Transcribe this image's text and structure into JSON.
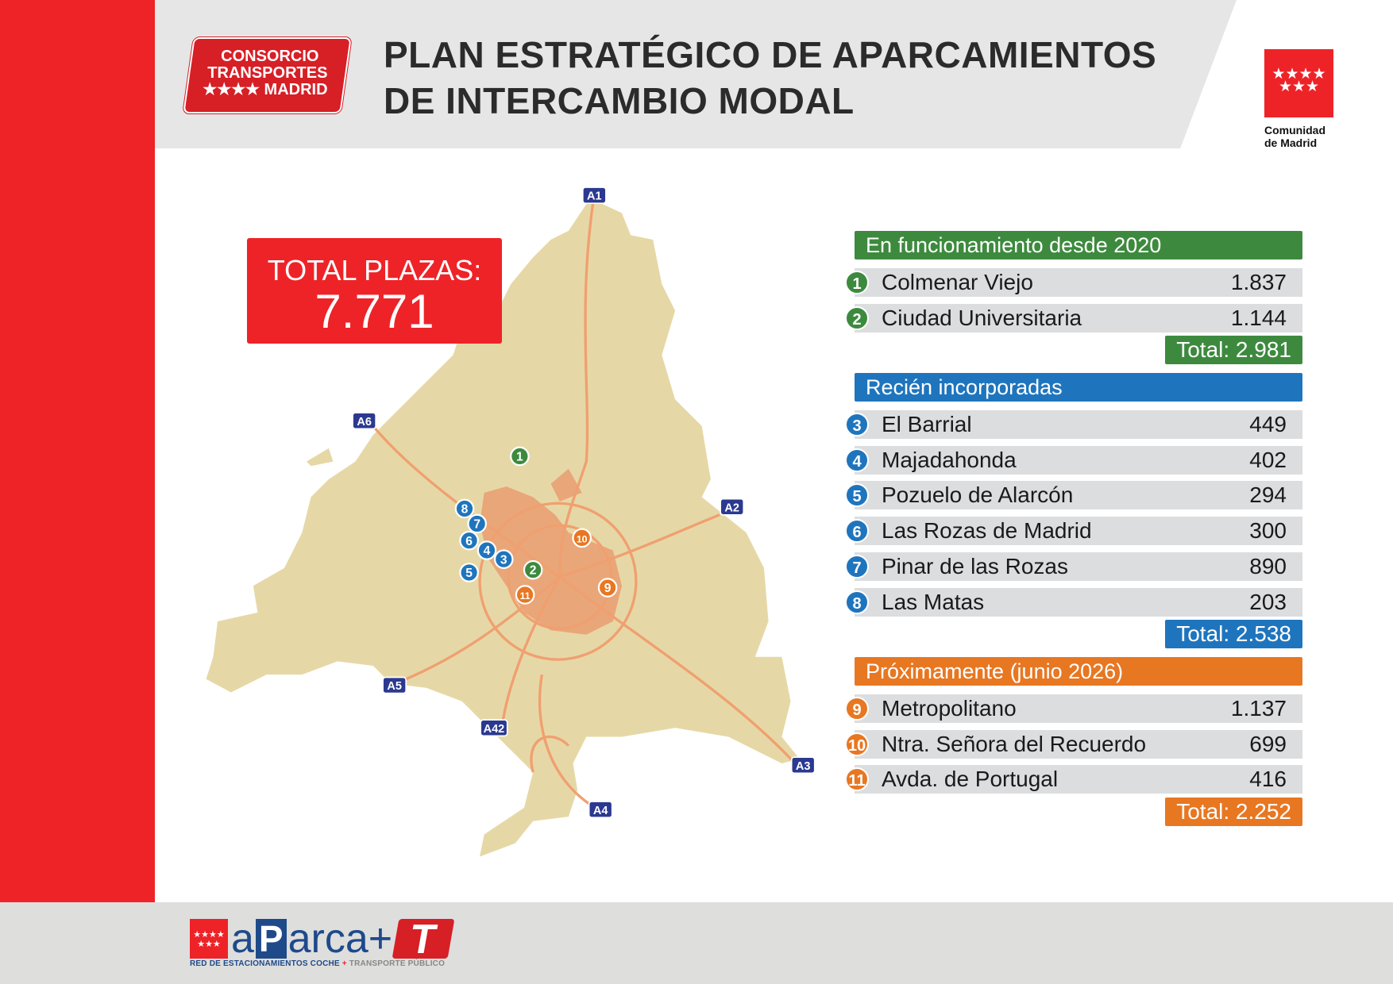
{
  "header": {
    "title_line1": "PLAN ESTRATÉGICO DE APARCAMIENTOS",
    "title_line2": "DE INTERCAMBIO MODAL",
    "consorcio_logo": [
      "CONSORCIO",
      "TRANSPORTES",
      "★★★★ MADRID"
    ],
    "comunidad_logo": {
      "stars": "★★★★ ★★★",
      "text_line1": "Comunidad",
      "text_line2": "de Madrid"
    }
  },
  "total": {
    "label": "TOTAL PLAZAS:",
    "value": "7.771"
  },
  "colors": {
    "red": "#ee2328",
    "green": "#3d8a3e",
    "blue": "#1f75bd",
    "orange": "#e87722",
    "map": "#e6d8a6",
    "city": "#e9a679"
  },
  "map": {
    "roads": [
      "A1",
      "A2",
      "A3",
      "A4",
      "A42",
      "A5",
      "A6"
    ],
    "markers": [
      {
        "n": "1",
        "group": "green"
      },
      {
        "n": "2",
        "group": "green"
      },
      {
        "n": "3",
        "group": "blue"
      },
      {
        "n": "4",
        "group": "blue"
      },
      {
        "n": "5",
        "group": "blue"
      },
      {
        "n": "6",
        "group": "blue"
      },
      {
        "n": "7",
        "group": "blue"
      },
      {
        "n": "8",
        "group": "blue"
      },
      {
        "n": "9",
        "group": "orange"
      },
      {
        "n": "10",
        "group": "orange"
      },
      {
        "n": "11",
        "group": "orange"
      }
    ]
  },
  "sections": [
    {
      "title": "En funcionamiento desde 2020",
      "color": "green",
      "items": [
        {
          "n": "1",
          "name": "Colmenar Viejo",
          "value": "1.837"
        },
        {
          "n": "2",
          "name": "Ciudad Universitaria",
          "value": "1.144"
        }
      ],
      "total": "Total: 2.981"
    },
    {
      "title": "Recién incorporadas",
      "color": "blue",
      "items": [
        {
          "n": "3",
          "name": "El Barrial",
          "value": "449"
        },
        {
          "n": "4",
          "name": "Majadahonda",
          "value": "402"
        },
        {
          "n": "5",
          "name": "Pozuelo de Alarcón",
          "value": "294"
        },
        {
          "n": "6",
          "name": "Las Rozas de Madrid",
          "value": "300"
        },
        {
          "n": "7",
          "name": "Pinar de las Rozas",
          "value": "890"
        },
        {
          "n": "8",
          "name": "Las Matas",
          "value": "203"
        }
      ],
      "total": "Total: 2.538"
    },
    {
      "title": "Próximamente (junio 2026)",
      "color": "orange",
      "items": [
        {
          "n": "9",
          "name": "Metropolitano",
          "value": "1.137"
        },
        {
          "n": "10",
          "name": "Ntra. Señora del Recuerdo",
          "value": "699"
        },
        {
          "n": "11",
          "name": "Avda. de Portugal",
          "value": "416"
        }
      ],
      "total": "Total: 2.252"
    }
  ],
  "footer": {
    "logo_stars": "★★★★ ★★★",
    "logo_a": "a",
    "logo_p": "P",
    "logo_rest": "arca+",
    "logo_t": "T",
    "tagline_1": "RED DE ESTACIONAMIENTOS ",
    "tagline_2": "COCHE",
    "tagline_3": " + ",
    "tagline_4": "TRANSPORTE PÚBLICO"
  }
}
